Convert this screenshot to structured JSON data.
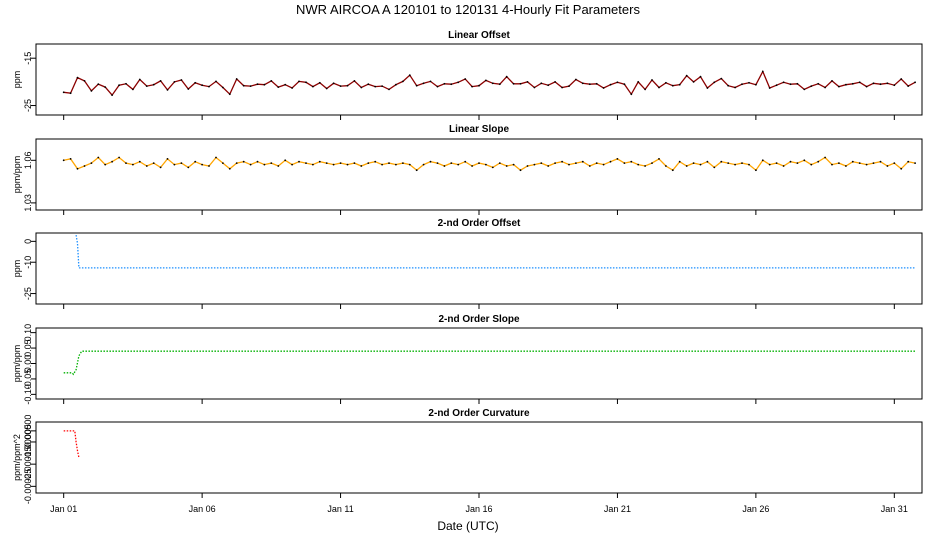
{
  "figure": {
    "title": "NWR   AIRCOA A   120101 to 120131   4-Hourly Fit Parameters",
    "xlabel": "Date (UTC)"
  },
  "chart_data": [
    {
      "type": "line",
      "title": "Linear Offset",
      "ylabel": "ppm",
      "xlim": [
        0.0,
        32.0
      ],
      "ylim": [
        -27.0,
        -12.0
      ],
      "yticks": [
        "-15",
        "-25"
      ],
      "ytick_values": [
        -15,
        -25
      ],
      "xticks": [
        "Jan 01",
        "Jan 06",
        "Jan 11",
        "Jan 16",
        "Jan 21",
        "Jan 26",
        "Jan 31"
      ],
      "xtick_values": [
        1,
        6,
        11,
        16,
        21,
        26,
        31
      ],
      "grid": false,
      "color": "#8b0000",
      "marker_color": "#000000",
      "x": [
        1.0,
        1.25,
        1.5,
        1.75,
        2.0,
        2.25,
        2.5,
        2.75,
        3.0,
        3.25,
        3.5,
        3.75,
        4.0,
        4.25,
        4.5,
        4.75,
        5.0,
        5.25,
        5.5,
        5.75,
        6.0,
        6.25,
        6.5,
        6.75,
        7.0,
        7.25,
        7.5,
        7.75,
        8.0,
        8.25,
        8.5,
        8.75,
        9.0,
        9.25,
        9.5,
        9.75,
        10.0,
        10.25,
        10.5,
        10.75,
        11.0,
        11.25,
        11.5,
        11.75,
        12.0,
        12.25,
        12.5,
        12.75,
        13.0,
        13.25,
        13.5,
        13.75,
        14.0,
        14.25,
        14.5,
        14.75,
        15.0,
        15.25,
        15.5,
        15.75,
        16.0,
        16.25,
        16.5,
        16.75,
        17.0,
        17.25,
        17.5,
        17.75,
        18.0,
        18.25,
        18.5,
        18.75,
        19.0,
        19.25,
        19.5,
        19.75,
        20.0,
        20.25,
        20.5,
        20.75,
        21.0,
        21.25,
        21.5,
        21.75,
        22.0,
        22.25,
        22.5,
        22.75,
        23.0,
        23.25,
        23.5,
        23.75,
        24.0,
        24.25,
        24.5,
        24.75,
        25.0,
        25.25,
        25.5,
        25.75,
        26.0,
        26.25,
        26.5,
        26.75,
        27.0,
        27.25,
        27.5,
        27.75,
        28.0,
        28.25,
        28.5,
        28.75,
        29.0,
        29.25,
        29.5,
        29.75,
        30.0,
        30.25,
        30.5,
        30.75,
        31.0,
        31.25,
        31.5,
        31.75
      ],
      "values": [
        -22.2,
        -22.4,
        -19.1,
        -19.8,
        -21.9,
        -20.5,
        -21.1,
        -22.8,
        -20.7,
        -20.4,
        -21.6,
        -19.5,
        -20.9,
        -20.6,
        -19.8,
        -21.7,
        -20.0,
        -19.6,
        -21.5,
        -20.2,
        -20.7,
        -21.0,
        -19.9,
        -21.2,
        -22.6,
        -19.4,
        -20.8,
        -20.9,
        -20.5,
        -20.6,
        -19.8,
        -21.1,
        -20.6,
        -21.3,
        -19.9,
        -20.1,
        -21.0,
        -20.2,
        -21.4,
        -20.3,
        -20.9,
        -20.8,
        -19.8,
        -21.2,
        -20.5,
        -21.0,
        -20.9,
        -21.6,
        -20.6,
        -19.9,
        -18.6,
        -20.8,
        -20.3,
        -19.9,
        -21.0,
        -20.4,
        -20.5,
        -20.1,
        -19.4,
        -21.0,
        -20.8,
        -19.7,
        -20.3,
        -20.5,
        -18.9,
        -20.4,
        -20.4,
        -20.0,
        -21.2,
        -20.3,
        -20.7,
        -20.0,
        -21.2,
        -20.9,
        -19.5,
        -20.3,
        -20.5,
        -20.4,
        -21.3,
        -20.6,
        -20.1,
        -20.5,
        -22.6,
        -20.0,
        -21.6,
        -19.6,
        -21.2,
        -20.2,
        -20.8,
        -20.6,
        -18.7,
        -20.0,
        -18.9,
        -21.3,
        -20.1,
        -19.3,
        -20.8,
        -21.2,
        -20.5,
        -20.2,
        -20.6,
        -17.8,
        -21.3,
        -20.7,
        -20.1,
        -20.5,
        -20.4,
        -21.6,
        -20.9,
        -20.4,
        -21.2,
        -19.8,
        -21.0,
        -20.6,
        -20.4,
        -20.1,
        -21.0,
        -20.3,
        -20.5,
        -20.3,
        -20.7,
        -19.4,
        -20.9,
        -20.1
      ]
    },
    {
      "type": "line",
      "title": "Linear Slope",
      "ylabel": "ppm/ppm",
      "xlim": [
        0.0,
        32.0
      ],
      "ylim": [
        1.025,
        1.075
      ],
      "yticks": [
        "1.03",
        "1.06"
      ],
      "ytick_values": [
        1.03,
        1.06
      ],
      "xticks": [
        "Jan 01",
        "Jan 06",
        "Jan 11",
        "Jan 16",
        "Jan 21",
        "Jan 26",
        "Jan 31"
      ],
      "xtick_values": [
        1,
        6,
        11,
        16,
        21,
        26,
        31
      ],
      "grid": false,
      "color": "#ffa500",
      "marker_color": "#000000",
      "x": [
        1.0,
        1.25,
        1.5,
        1.75,
        2.0,
        2.25,
        2.5,
        2.75,
        3.0,
        3.25,
        3.5,
        3.75,
        4.0,
        4.25,
        4.5,
        4.75,
        5.0,
        5.25,
        5.5,
        5.75,
        6.0,
        6.25,
        6.5,
        6.75,
        7.0,
        7.25,
        7.5,
        7.75,
        8.0,
        8.25,
        8.5,
        8.75,
        9.0,
        9.25,
        9.5,
        9.75,
        10.0,
        10.25,
        10.5,
        10.75,
        11.0,
        11.25,
        11.5,
        11.75,
        12.0,
        12.25,
        12.5,
        12.75,
        13.0,
        13.25,
        13.5,
        13.75,
        14.0,
        14.25,
        14.5,
        14.75,
        15.0,
        15.25,
        15.5,
        15.75,
        16.0,
        16.25,
        16.5,
        16.75,
        17.0,
        17.25,
        17.5,
        17.75,
        18.0,
        18.25,
        18.5,
        18.75,
        19.0,
        19.25,
        19.5,
        19.75,
        20.0,
        20.25,
        20.5,
        20.75,
        21.0,
        21.25,
        21.5,
        21.75,
        22.0,
        22.25,
        22.5,
        22.75,
        23.0,
        23.25,
        23.5,
        23.75,
        24.0,
        24.25,
        24.5,
        24.75,
        25.0,
        25.25,
        25.5,
        25.75,
        26.0,
        26.25,
        26.5,
        26.75,
        27.0,
        27.25,
        27.5,
        27.75,
        28.0,
        28.25,
        28.5,
        28.75,
        29.0,
        29.25,
        29.5,
        29.75,
        30.0,
        30.25,
        30.5,
        30.75,
        31.0,
        31.25,
        31.5,
        31.75
      ],
      "values": [
        1.06,
        1.061,
        1.054,
        1.056,
        1.058,
        1.062,
        1.057,
        1.059,
        1.062,
        1.058,
        1.057,
        1.059,
        1.056,
        1.058,
        1.055,
        1.061,
        1.057,
        1.058,
        1.055,
        1.059,
        1.057,
        1.056,
        1.062,
        1.058,
        1.054,
        1.058,
        1.059,
        1.057,
        1.059,
        1.057,
        1.058,
        1.056,
        1.06,
        1.057,
        1.059,
        1.058,
        1.057,
        1.059,
        1.058,
        1.057,
        1.058,
        1.057,
        1.058,
        1.056,
        1.058,
        1.059,
        1.057,
        1.058,
        1.057,
        1.058,
        1.057,
        1.053,
        1.057,
        1.059,
        1.058,
        1.056,
        1.058,
        1.057,
        1.059,
        1.056,
        1.058,
        1.057,
        1.055,
        1.058,
        1.056,
        1.057,
        1.053,
        1.056,
        1.057,
        1.058,
        1.056,
        1.058,
        1.059,
        1.057,
        1.058,
        1.059,
        1.056,
        1.058,
        1.057,
        1.059,
        1.061,
        1.058,
        1.059,
        1.057,
        1.056,
        1.058,
        1.061,
        1.056,
        1.053,
        1.059,
        1.056,
        1.058,
        1.057,
        1.059,
        1.055,
        1.059,
        1.058,
        1.057,
        1.058,
        1.057,
        1.053,
        1.06,
        1.057,
        1.058,
        1.056,
        1.059,
        1.058,
        1.06,
        1.057,
        1.059,
        1.062,
        1.057,
        1.058,
        1.056,
        1.059,
        1.058,
        1.057,
        1.058,
        1.059,
        1.056,
        1.058,
        1.054,
        1.059,
        1.058
      ]
    },
    {
      "type": "line",
      "title": "2-nd Order Offset",
      "ylabel": "ppm",
      "xlim": [
        0.0,
        32.0
      ],
      "ylim": [
        -30.0,
        4.0
      ],
      "yticks": [
        "0",
        "-10",
        "-25"
      ],
      "ytick_values": [
        0,
        -10,
        -25
      ],
      "xticks": [
        "Jan 01",
        "Jan 06",
        "Jan 11",
        "Jan 16",
        "Jan 21",
        "Jan 26",
        "Jan 31"
      ],
      "xtick_values": [
        1,
        6,
        11,
        16,
        21,
        26,
        31
      ],
      "grid": false,
      "color": "#1e90ff",
      "x": [
        1.45,
        1.5,
        1.55,
        31.75
      ],
      "values": [
        3.0,
        -1.0,
        -12.7,
        -12.7
      ]
    },
    {
      "type": "line",
      "title": "2-nd Order Slope",
      "ylabel": "ppm/ppm",
      "xlim": [
        0.0,
        32.0
      ],
      "ylim": [
        -0.115,
        0.115
      ],
      "yticks": [
        "0.10",
        "0.05",
        "0.00",
        "-0.05",
        "-0.10"
      ],
      "ytick_values": [
        0.1,
        0.05,
        0.0,
        -0.05,
        -0.1
      ],
      "xticks": [
        "Jan 01",
        "Jan 06",
        "Jan 11",
        "Jan 16",
        "Jan 21",
        "Jan 26",
        "Jan 31"
      ],
      "xtick_values": [
        1,
        6,
        11,
        16,
        21,
        26,
        31
      ],
      "grid": false,
      "color": "#00b000",
      "x": [
        1.0,
        1.3,
        1.35,
        1.45,
        1.55,
        1.65,
        31.75
      ],
      "values": [
        -0.03,
        -0.03,
        -0.035,
        -0.02,
        0.025,
        0.04,
        0.04
      ]
    },
    {
      "type": "line",
      "title": "2-nd Order Curvature",
      "ylabel": "ppm/ppm^2",
      "xlim": [
        0.0,
        32.0
      ],
      "ylim": [
        -0.00028,
        4e-05
      ],
      "yticks": [
        "0.00000",
        "-0.00005",
        "-0.00015",
        "-0.00025"
      ],
      "ytick_values": [
        0.0,
        -5e-05,
        -0.00015,
        -0.00025
      ],
      "xticks": [
        "Jan 01",
        "Jan 06",
        "Jan 11",
        "Jan 16",
        "Jan 21",
        "Jan 26",
        "Jan 31"
      ],
      "xtick_values": [
        1,
        6,
        11,
        16,
        21,
        26,
        31
      ],
      "grid": false,
      "color": "#ff0000",
      "x": [
        1.0,
        1.3,
        1.4,
        1.45,
        1.5,
        1.55
      ],
      "values": [
        0.0,
        0.0,
        0.0,
        -5e-05,
        -9e-05,
        -0.00012
      ]
    }
  ]
}
